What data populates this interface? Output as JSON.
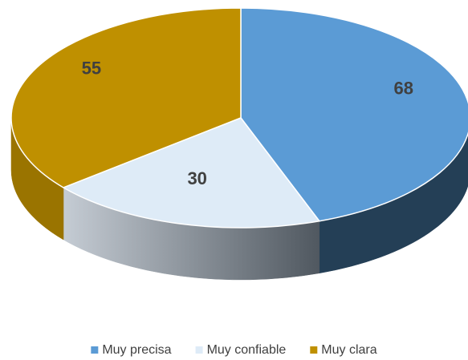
{
  "chart_data": {
    "type": "pie",
    "categories": [
      "Muy precisa",
      "Muy confiable",
      "Muy clara"
    ],
    "values": [
      68,
      30,
      55
    ],
    "colors": [
      "#5b9bd5",
      "#deebf7",
      "#bf9000"
    ],
    "side_colors": [
      "#243f56",
      "#8a939c",
      "#9a7400"
    ],
    "legend": "bottom"
  }
}
